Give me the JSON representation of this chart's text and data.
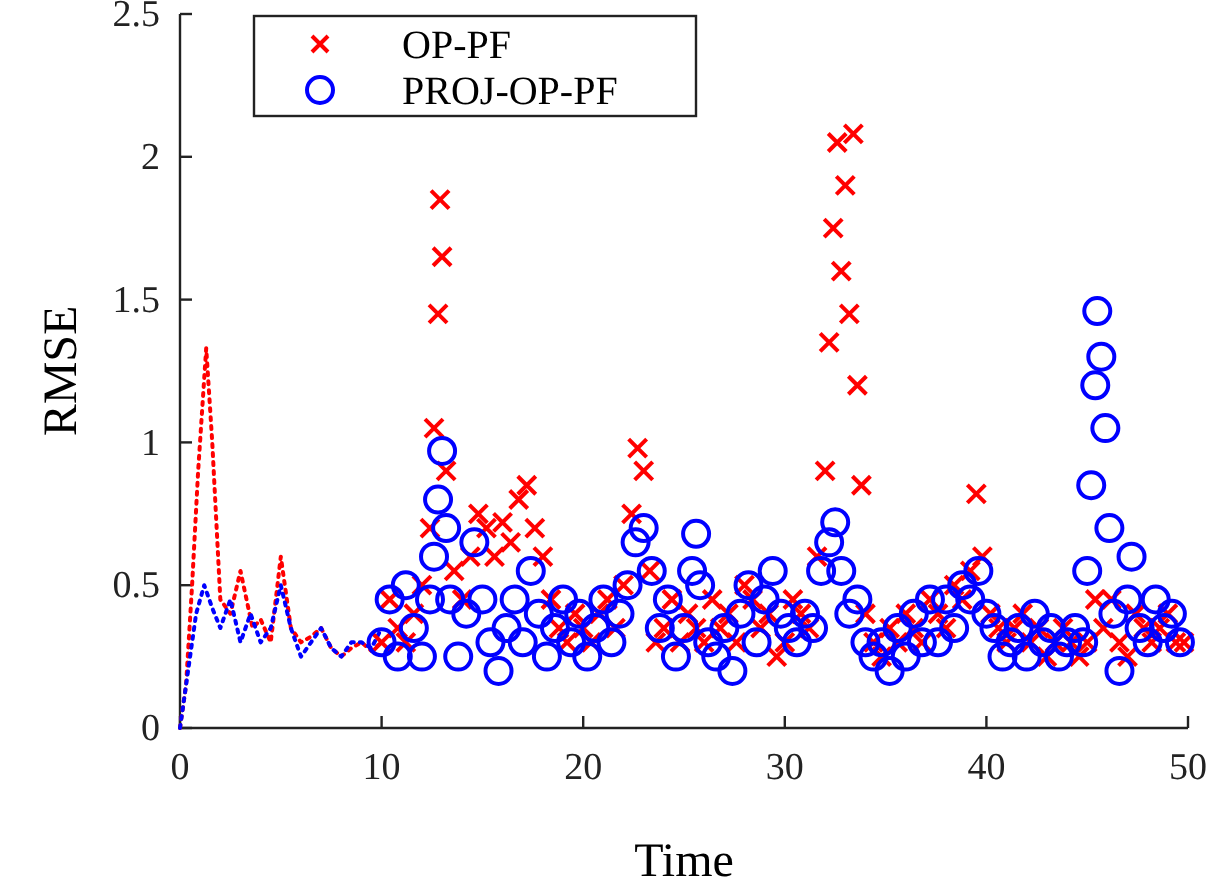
{
  "chart_data": {
    "type": "scatter",
    "xlabel": "Time",
    "ylabel": "RMSE",
    "xlim": [
      0,
      50
    ],
    "ylim": [
      0,
      2.5
    ],
    "xticks": [
      0,
      10,
      20,
      30,
      40,
      50
    ],
    "yticks": [
      0,
      0.5,
      1,
      1.5,
      2,
      2.5
    ],
    "grid": false,
    "legend": "top left",
    "series": [
      {
        "type": "line",
        "line_style": "dotted",
        "color": "#ff0000",
        "x": [
          0,
          0.3,
          0.6,
          0.9,
          1.3,
          1.6,
          2.0,
          2.5,
          3.0,
          3.3,
          3.6,
          4.0,
          4.5,
          5.0,
          5.5,
          6.0,
          6.5,
          7.0,
          7.5,
          8.0,
          8.5,
          9.0,
          9.5,
          10.0
        ],
        "values": [
          0,
          0.15,
          0.5,
          0.9,
          1.33,
          1.0,
          0.45,
          0.4,
          0.55,
          0.45,
          0.35,
          0.38,
          0.3,
          0.6,
          0.35,
          0.3,
          0.32,
          0.35,
          0.28,
          0.25,
          0.28,
          0.3,
          0.27,
          0.3
        ]
      },
      {
        "type": "line",
        "line_style": "dotted",
        "color": "#0000ff",
        "x": [
          0,
          0.4,
          0.8,
          1.2,
          1.6,
          2.0,
          2.5,
          3.0,
          3.5,
          4.0,
          4.5,
          5.0,
          5.5,
          6.0,
          6.5,
          7.0,
          7.5,
          8.0,
          8.5,
          9.0,
          9.5,
          10.0
        ],
        "values": [
          0,
          0.2,
          0.4,
          0.5,
          0.42,
          0.35,
          0.45,
          0.3,
          0.4,
          0.3,
          0.35,
          0.5,
          0.35,
          0.25,
          0.3,
          0.35,
          0.28,
          0.25,
          0.3,
          0.3,
          0.28,
          0.35
        ]
      },
      {
        "name": "OP-PF",
        "marker": "cross",
        "color": "#ff0000",
        "x": [
          10.0,
          10.4,
          10.8,
          11.2,
          11.6,
          12.0,
          12.4,
          12.6,
          12.8,
          12.9,
          13.0,
          13.2,
          13.6,
          14.0,
          14.4,
          14.8,
          15.2,
          15.6,
          16.0,
          16.4,
          16.8,
          17.2,
          17.6,
          18.0,
          18.4,
          18.8,
          19.2,
          19.6,
          20.0,
          20.4,
          20.8,
          21.2,
          21.6,
          22.0,
          22.4,
          22.7,
          23.0,
          23.3,
          23.6,
          24.0,
          24.4,
          24.8,
          25.2,
          25.6,
          26.0,
          26.4,
          26.8,
          27.2,
          27.6,
          28.0,
          28.4,
          28.8,
          29.2,
          29.6,
          30.0,
          30.4,
          30.8,
          31.2,
          31.6,
          32.0,
          32.2,
          32.4,
          32.6,
          32.8,
          33.0,
          33.2,
          33.4,
          33.6,
          33.8,
          34.0,
          34.4,
          34.8,
          35.2,
          35.6,
          36.0,
          36.4,
          36.8,
          37.2,
          37.6,
          38.0,
          38.4,
          38.8,
          39.2,
          39.5,
          39.8,
          40.2,
          40.6,
          41.0,
          41.4,
          41.8,
          42.2,
          42.6,
          43.0,
          43.4,
          43.8,
          44.2,
          44.6,
          45.0,
          45.4,
          45.8,
          46.2,
          46.6,
          47.0,
          47.4,
          47.8,
          48.2,
          48.6,
          49.0,
          49.4,
          49.8
        ],
        "values": [
          0.3,
          0.45,
          0.35,
          0.3,
          0.4,
          0.5,
          0.7,
          1.05,
          1.45,
          1.85,
          1.65,
          0.9,
          0.55,
          0.45,
          0.6,
          0.75,
          0.7,
          0.6,
          0.72,
          0.65,
          0.8,
          0.85,
          0.7,
          0.6,
          0.45,
          0.35,
          0.3,
          0.4,
          0.35,
          0.3,
          0.4,
          0.45,
          0.35,
          0.5,
          0.75,
          0.98,
          0.9,
          0.55,
          0.3,
          0.35,
          0.45,
          0.3,
          0.4,
          0.35,
          0.3,
          0.45,
          0.35,
          0.4,
          0.3,
          0.5,
          0.45,
          0.35,
          0.4,
          0.25,
          0.3,
          0.45,
          0.4,
          0.35,
          0.6,
          0.9,
          1.35,
          1.75,
          2.05,
          1.6,
          1.9,
          1.45,
          2.08,
          1.2,
          0.85,
          0.4,
          0.3,
          0.25,
          0.35,
          0.3,
          0.4,
          0.35,
          0.3,
          0.45,
          0.4,
          0.35,
          0.5,
          0.45,
          0.55,
          0.82,
          0.6,
          0.4,
          0.35,
          0.3,
          0.35,
          0.4,
          0.3,
          0.35,
          0.25,
          0.3,
          0.35,
          0.3,
          0.25,
          0.3,
          0.45,
          0.35,
          0.45,
          0.3,
          0.25,
          0.4,
          0.35,
          0.3,
          0.35,
          0.4,
          0.3,
          0.3
        ]
      },
      {
        "name": "PROJ-OP-PF",
        "marker": "circle",
        "color": "#0000ff",
        "x": [
          10.0,
          10.4,
          10.8,
          11.2,
          11.6,
          12.0,
          12.4,
          12.6,
          12.8,
          13.0,
          13.2,
          13.4,
          13.8,
          14.2,
          14.6,
          15.0,
          15.4,
          15.8,
          16.2,
          16.6,
          17.0,
          17.4,
          17.8,
          18.2,
          18.6,
          19.0,
          19.4,
          19.8,
          20.2,
          20.6,
          21.0,
          21.4,
          21.8,
          22.2,
          22.6,
          23.0,
          23.4,
          23.8,
          24.2,
          24.6,
          25.0,
          25.4,
          25.6,
          25.8,
          26.2,
          26.6,
          27.0,
          27.4,
          27.8,
          28.2,
          28.6,
          29.0,
          29.4,
          29.8,
          30.2,
          30.6,
          31.0,
          31.4,
          31.8,
          32.2,
          32.5,
          32.8,
          33.2,
          33.6,
          34.0,
          34.4,
          34.8,
          35.2,
          35.6,
          36.0,
          36.4,
          36.8,
          37.2,
          37.6,
          38.0,
          38.4,
          38.8,
          39.2,
          39.6,
          40.0,
          40.4,
          40.8,
          41.2,
          41.6,
          42.0,
          42.4,
          42.8,
          43.2,
          43.6,
          44.0,
          44.4,
          44.8,
          45.0,
          45.2,
          45.4,
          45.5,
          45.7,
          45.9,
          46.1,
          46.3,
          46.6,
          47.0,
          47.2,
          47.6,
          48.0,
          48.4,
          48.8,
          49.2,
          49.6
        ],
        "values": [
          0.3,
          0.45,
          0.25,
          0.5,
          0.35,
          0.25,
          0.45,
          0.6,
          0.8,
          0.97,
          0.7,
          0.45,
          0.25,
          0.4,
          0.65,
          0.45,
          0.3,
          0.2,
          0.35,
          0.45,
          0.3,
          0.55,
          0.4,
          0.25,
          0.35,
          0.45,
          0.3,
          0.4,
          0.25,
          0.35,
          0.45,
          0.3,
          0.4,
          0.5,
          0.65,
          0.7,
          0.55,
          0.35,
          0.45,
          0.25,
          0.35,
          0.55,
          0.68,
          0.5,
          0.3,
          0.25,
          0.35,
          0.2,
          0.4,
          0.5,
          0.3,
          0.45,
          0.55,
          0.4,
          0.35,
          0.3,
          0.4,
          0.35,
          0.55,
          0.65,
          0.72,
          0.55,
          0.4,
          0.45,
          0.3,
          0.25,
          0.3,
          0.2,
          0.35,
          0.25,
          0.4,
          0.3,
          0.45,
          0.3,
          0.45,
          0.35,
          0.5,
          0.45,
          0.55,
          0.4,
          0.35,
          0.25,
          0.3,
          0.35,
          0.25,
          0.4,
          0.3,
          0.35,
          0.25,
          0.3,
          0.35,
          0.3,
          0.55,
          0.85,
          1.2,
          1.46,
          1.3,
          1.05,
          0.7,
          0.4,
          0.2,
          0.45,
          0.6,
          0.35,
          0.3,
          0.45,
          0.35,
          0.4,
          0.3
        ]
      }
    ]
  }
}
